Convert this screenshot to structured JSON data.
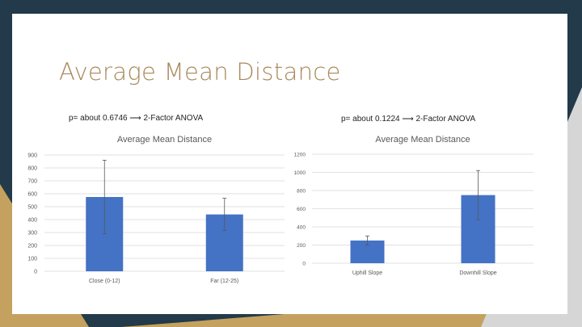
{
  "slide": {
    "title": "Average Mean Distance",
    "note_left": "p= about 0.6746 ⟶ 2-Factor ANOVA",
    "note_right": "p= about 0.1224 ⟶ 2-Factor ANOVA",
    "colors": {
      "dark": "#223a49",
      "gold": "#c4a15e",
      "gray": "#d6d6d6",
      "title": "#a8885a",
      "bar": "#4472c4"
    }
  },
  "chart_data": [
    {
      "type": "bar",
      "title": "Average Mean Distance",
      "categories": [
        "Close (0-12)",
        "Far (12-25)"
      ],
      "values": [
        575,
        440
      ],
      "error": [
        285,
        125
      ],
      "ylim": [
        0,
        900
      ],
      "yticks": [
        0,
        100,
        200,
        300,
        400,
        500,
        600,
        700,
        800,
        900
      ],
      "grid": true
    },
    {
      "type": "bar",
      "title": "Average Mean Distance",
      "categories": [
        "Uphill Slope",
        "Downhill Slope"
      ],
      "values": [
        250,
        750
      ],
      "error": [
        50,
        270
      ],
      "ylim": [
        0,
        1200
      ],
      "yticks": [
        0,
        200,
        400,
        600,
        800,
        1000,
        1200
      ],
      "grid": true
    }
  ]
}
